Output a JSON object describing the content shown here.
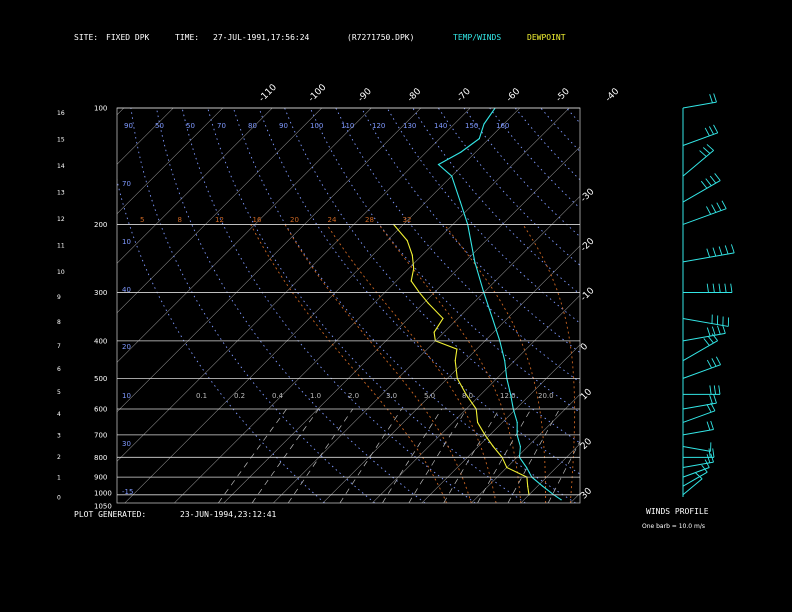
{
  "header": {
    "site_label": "SITE:",
    "site_value": "FIXED DPK",
    "time_label": "TIME:",
    "time_value": "27-JUL-1991,17:56:24",
    "file_value": "(R7271750.DPK)",
    "legend_temp": "TEMP/WINDS",
    "legend_dew": "DEWPOINT"
  },
  "footer": {
    "generated_label": "PLOT GENERATED:",
    "generated_value": "23-JUN-1994,23:12:41"
  },
  "winds_panel": {
    "title": "WINDS PROFILE",
    "note": "One barb = 10.0 m/s"
  },
  "colors": {
    "temp": "#33e6e6",
    "dewpoint": "#f2f233",
    "isobar": "#d9d9d9",
    "isotherm": "#cfcfcf",
    "dry_adiabat": "#7f99ff",
    "moist_adiabat": "#cc6622",
    "mixing_ratio": "#bbbbbb",
    "label_blue": "#7f99ff",
    "label_orange": "#cc6622"
  },
  "chart_data": {
    "type": "line",
    "title": "",
    "y_axis": {
      "quantity": "pressure (mb)",
      "scale": "log",
      "range": [
        1050,
        100
      ],
      "ticks": [
        100,
        200,
        300,
        400,
        500,
        600,
        700,
        800,
        900,
        1000,
        1050
      ]
    },
    "height_axis": {
      "quantity": "height (km)",
      "ticks": [
        0,
        1,
        2,
        3,
        4,
        5,
        6,
        7,
        8,
        9,
        10,
        11,
        12,
        13,
        14,
        15,
        16
      ]
    },
    "isotherm_ticks_top": [
      -110,
      -100,
      -90,
      -80,
      -70,
      -60,
      -50,
      -40
    ],
    "isotherm_ticks_right": [
      -30,
      -20,
      -10,
      0,
      10,
      20,
      30
    ],
    "dry_adiabat_labels": [
      90,
      50,
      50,
      70,
      80,
      90,
      100,
      110,
      120,
      130,
      140,
      150,
      160
    ],
    "moist_adiabat_labels": [
      5,
      8,
      12,
      16,
      20,
      24,
      28,
      32
    ],
    "mixing_ratio_labels": [
      "0.1",
      "0.2",
      "0.4",
      "1.0",
      "2.0",
      "3.0",
      "5.0",
      "8.0",
      "12.0",
      "20.0"
    ],
    "series": [
      {
        "name": "TEMP/WINDS",
        "points": [
          {
            "p": 1030,
            "t": 27.5
          },
          {
            "p": 1000,
            "t": 25
          },
          {
            "p": 950,
            "t": 21
          },
          {
            "p": 900,
            "t": 17
          },
          {
            "p": 850,
            "t": 14
          },
          {
            "p": 800,
            "t": 10.5
          },
          {
            "p": 750,
            "t": 8.5
          },
          {
            "p": 700,
            "t": 5.5
          },
          {
            "p": 650,
            "t": 3
          },
          {
            "p": 600,
            "t": -0.5
          },
          {
            "p": 550,
            "t": -4
          },
          {
            "p": 500,
            "t": -8
          },
          {
            "p": 450,
            "t": -12
          },
          {
            "p": 400,
            "t": -17
          },
          {
            "p": 350,
            "t": -23
          },
          {
            "p": 300,
            "t": -30
          },
          {
            "p": 250,
            "t": -38
          },
          {
            "p": 200,
            "t": -47
          },
          {
            "p": 175,
            "t": -53
          },
          {
            "p": 150,
            "t": -60
          },
          {
            "p": 140,
            "t": -65
          },
          {
            "p": 130,
            "t": -63
          },
          {
            "p": 120,
            "t": -62
          },
          {
            "p": 110,
            "t": -64
          },
          {
            "p": 100,
            "t": -65
          }
        ]
      },
      {
        "name": "DEWPOINT",
        "points": [
          {
            "p": 1000,
            "t": 20
          },
          {
            "p": 950,
            "t": 18
          },
          {
            "p": 900,
            "t": 16
          },
          {
            "p": 850,
            "t": 10
          },
          {
            "p": 800,
            "t": 7
          },
          {
            "p": 750,
            "t": 3
          },
          {
            "p": 700,
            "t": -1
          },
          {
            "p": 650,
            "t": -5
          },
          {
            "p": 600,
            "t": -8
          },
          {
            "p": 550,
            "t": -13
          },
          {
            "p": 500,
            "t": -18
          },
          {
            "p": 450,
            "t": -22
          },
          {
            "p": 420,
            "t": -24
          },
          {
            "p": 400,
            "t": -30
          },
          {
            "p": 380,
            "t": -32
          },
          {
            "p": 350,
            "t": -33
          },
          {
            "p": 320,
            "t": -39
          },
          {
            "p": 300,
            "t": -43
          },
          {
            "p": 280,
            "t": -47
          },
          {
            "p": 260,
            "t": -49
          },
          {
            "p": 240,
            "t": -52
          },
          {
            "p": 220,
            "t": -56
          },
          {
            "p": 200,
            "t": -62
          }
        ]
      }
    ],
    "winds": [
      {
        "p": 1000,
        "dir": 230,
        "spd": 5
      },
      {
        "p": 950,
        "dir": 240,
        "spd": 10
      },
      {
        "p": 900,
        "dir": 250,
        "spd": 10
      },
      {
        "p": 850,
        "dir": 260,
        "spd": 15
      },
      {
        "p": 800,
        "dir": 270,
        "spd": 15
      },
      {
        "p": 750,
        "dir": 280,
        "spd": 10
      },
      {
        "p": 700,
        "dir": 260,
        "spd": 15
      },
      {
        "p": 650,
        "dir": 250,
        "spd": 20
      },
      {
        "p": 600,
        "dir": 260,
        "spd": 20
      },
      {
        "p": 550,
        "dir": 270,
        "spd": 25
      },
      {
        "p": 500,
        "dir": 250,
        "spd": 30
      },
      {
        "p": 450,
        "dir": 240,
        "spd": 30
      },
      {
        "p": 400,
        "dir": 260,
        "spd": 35
      },
      {
        "p": 350,
        "dir": 280,
        "spd": 40
      },
      {
        "p": 300,
        "dir": 270,
        "spd": 45
      },
      {
        "p": 250,
        "dir": 260,
        "spd": 50
      },
      {
        "p": 200,
        "dir": 250,
        "spd": 40
      },
      {
        "p": 175,
        "dir": 240,
        "spd": 35
      },
      {
        "p": 150,
        "dir": 230,
        "spd": 30
      },
      {
        "p": 125,
        "dir": 250,
        "spd": 25
      },
      {
        "p": 100,
        "dir": 260,
        "spd": 20
      }
    ]
  }
}
